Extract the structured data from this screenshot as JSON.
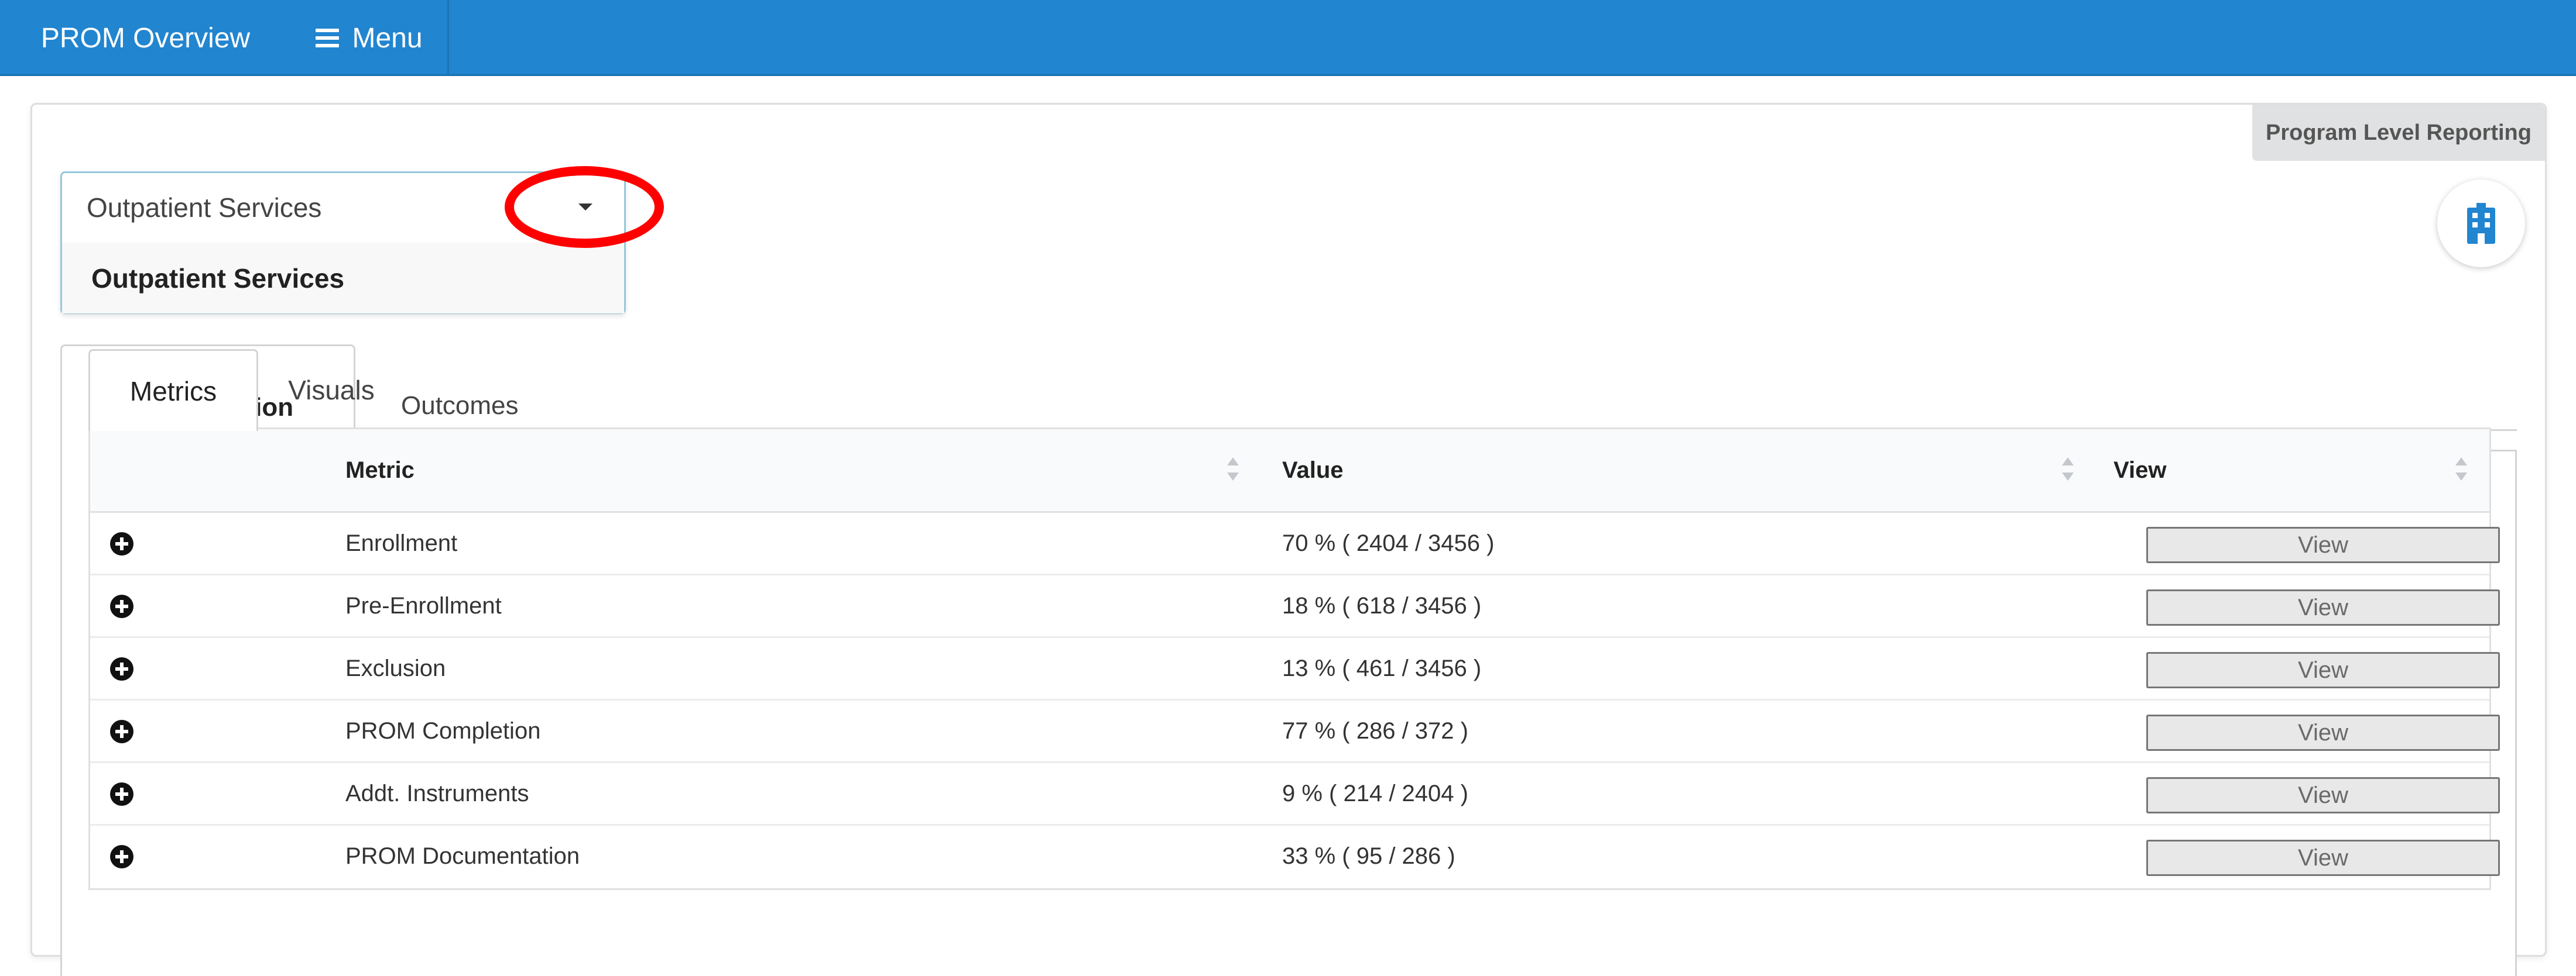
{
  "nav": {
    "title": "PROM Overview",
    "menu_label": "Menu"
  },
  "header": {
    "program_reporting_label": "Program Level Reporting",
    "building_icon": "building-icon"
  },
  "dropdown": {
    "selected": "Outpatient Services",
    "options": [
      "Outpatient Services"
    ]
  },
  "outer_tabs": [
    {
      "label": "Implementation",
      "active": true
    },
    {
      "label": "Outcomes",
      "active": false
    }
  ],
  "inner_tabs": [
    {
      "label": "Metrics",
      "active": true
    },
    {
      "label": "Visuals",
      "active": false
    }
  ],
  "table": {
    "columns": {
      "metric": "Metric",
      "value": "Value",
      "view": "View"
    },
    "rows": [
      {
        "metric": "Enrollment",
        "value": "70 % ( 2404 / 3456 )",
        "action": "View"
      },
      {
        "metric": "Pre-Enrollment",
        "value": "18 % ( 618 / 3456 )",
        "action": "View"
      },
      {
        "metric": "Exclusion",
        "value": "13 % ( 461 / 3456 )",
        "action": "View"
      },
      {
        "metric": "PROM Completion",
        "value": "77 % ( 286 / 372 )",
        "action": "View"
      },
      {
        "metric": "Addt. Instruments",
        "value": "9 % ( 214 / 2404 )",
        "action": "View"
      },
      {
        "metric": "PROM Documentation",
        "value": "33 % ( 95 / 286 )",
        "action": "View"
      }
    ]
  },
  "colors": {
    "nav_background": "#2185d0",
    "building_icon": "#2185d0",
    "highlight_ring": "#ff0000"
  }
}
